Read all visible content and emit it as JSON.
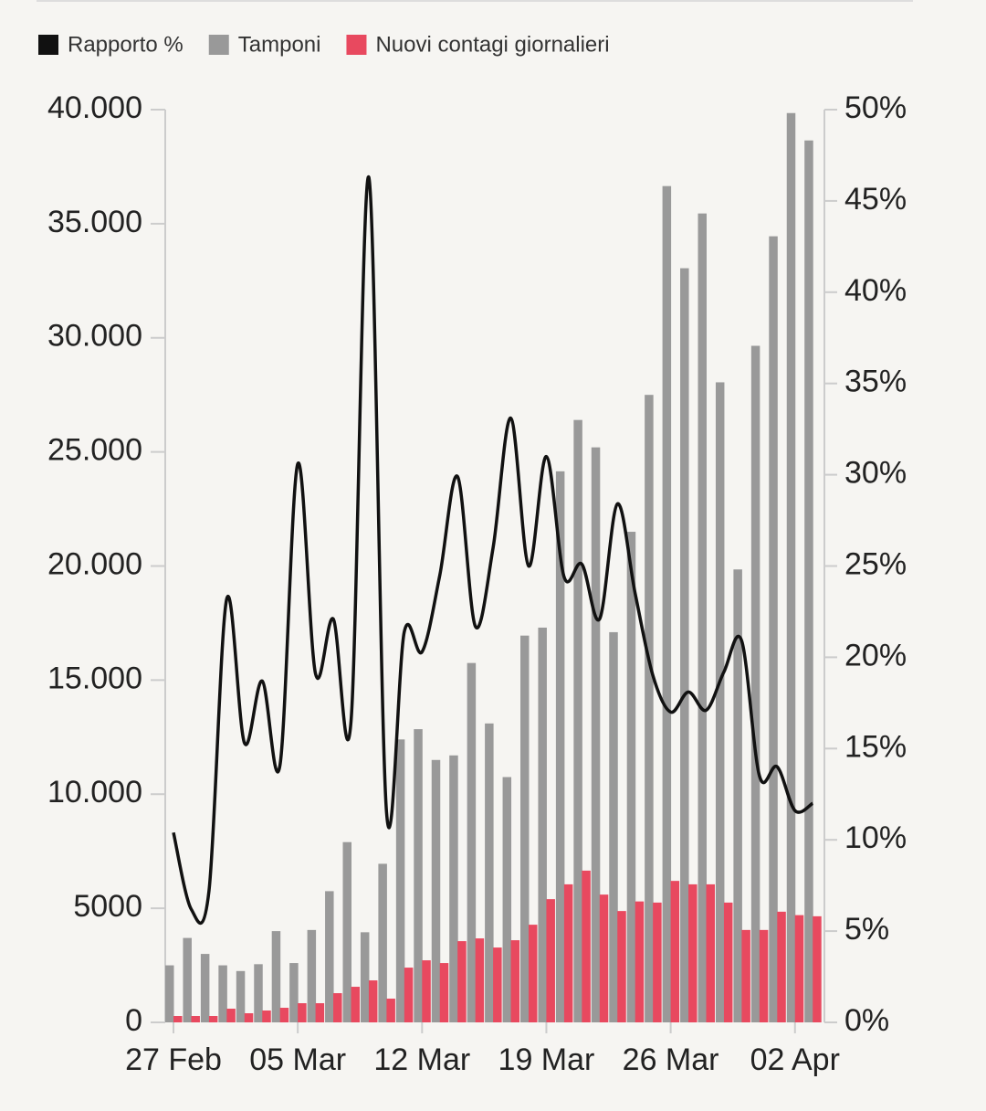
{
  "chart_data": {
    "type": "bar",
    "categories": [
      "27 Feb",
      null,
      null,
      null,
      null,
      null,
      null,
      "05 Mar",
      null,
      null,
      null,
      null,
      null,
      null,
      "12 Mar",
      null,
      null,
      null,
      null,
      null,
      null,
      "19 Mar",
      null,
      null,
      null,
      null,
      null,
      null,
      "26 Mar",
      null,
      null,
      null,
      null,
      null,
      null,
      "02 Apr",
      null
    ],
    "series": [
      {
        "name": "Rapporto %",
        "type": "line",
        "axis": "y2",
        "color": "#111111",
        "values": [
          10.4,
          6.2,
          7.2,
          23.2,
          15.3,
          18.7,
          14.1,
          30.6,
          19.1,
          22.1,
          16.5,
          46.3,
          11.5,
          21.4,
          20.3,
          24.5,
          29.9,
          21.7,
          26,
          33.1,
          25.0,
          31.0,
          24.4,
          25.1,
          22.1,
          28.4,
          23.5,
          19,
          17.0,
          18.1,
          17.1,
          19.2,
          20.9,
          13.5,
          14.0,
          11.6,
          12.0
        ]
      },
      {
        "name": "Tamponi",
        "type": "bar",
        "color": "#999999",
        "values": [
          2500,
          3700,
          3000,
          2500,
          2250,
          2550,
          4000,
          2600,
          4050,
          5750,
          7900,
          3950,
          6950,
          12400,
          12850,
          11500,
          11700,
          15750,
          13100,
          10750,
          16950,
          17300,
          24150,
          26400,
          25200,
          17100,
          21500,
          27500,
          36650,
          33050,
          35450,
          28050,
          19850,
          29650,
          34450,
          39850,
          38650
        ]
      },
      {
        "name": "Nuovi contagi giornalieri",
        "type": "bar",
        "color": "#e8495f",
        "values": [
          280,
          280,
          280,
          600,
          400,
          520,
          640,
          840,
          840,
          1280,
          1560,
          1840,
          1040,
          2400,
          2720,
          2600,
          3560,
          3680,
          3280,
          3600,
          4280,
          5400,
          6050,
          6650,
          5600,
          4880,
          5300,
          5250,
          6200,
          6050,
          6050,
          5250,
          4050,
          4050,
          4850,
          4700,
          4650
        ]
      }
    ],
    "ylim": [
      0,
      40000
    ],
    "yticks": [
      0,
      5000,
      {
        "value": 10000,
        "label": "10.000"
      },
      {
        "value": 15000,
        "label": "15.000"
      },
      {
        "value": 20000,
        "label": "20.000"
      },
      {
        "value": 25000,
        "label": "25.000"
      },
      {
        "value": 30000,
        "label": "30.000"
      },
      {
        "value": 35000,
        "label": "35.000"
      },
      {
        "value": 40000,
        "label": "40.000"
      }
    ],
    "y2lim": [
      0,
      50
    ],
    "y2ticks": [
      {
        "value": 0,
        "label": "0%"
      },
      {
        "value": 5,
        "label": "5%"
      },
      {
        "value": 10,
        "label": "10%"
      },
      {
        "value": 15,
        "label": "15%"
      },
      {
        "value": 20,
        "label": "20%"
      },
      {
        "value": 25,
        "label": "25%"
      },
      {
        "value": 30,
        "label": "30%"
      },
      {
        "value": 35,
        "label": "35%"
      },
      {
        "value": 40,
        "label": "40%"
      },
      {
        "value": 45,
        "label": "45%"
      },
      {
        "value": 50,
        "label": "50%"
      }
    ],
    "legend": "top-left"
  }
}
